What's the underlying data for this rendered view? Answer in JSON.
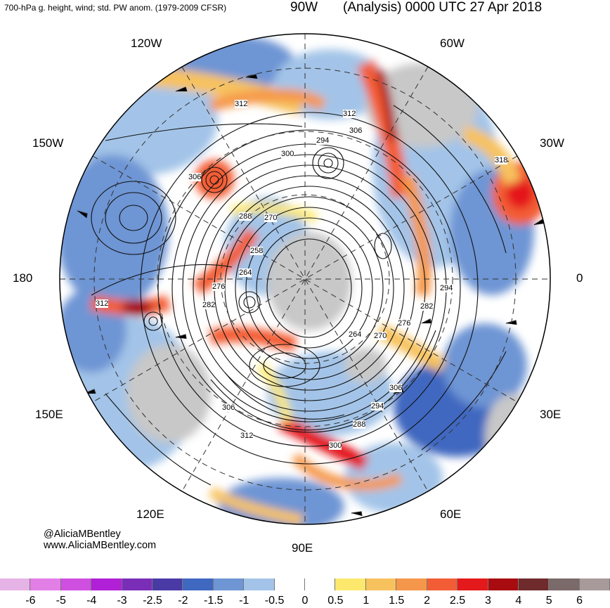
{
  "header": {
    "subtitle": "700-hPa g. height, wind; std. PW anom. (1979-2009 CFSR)",
    "title": "(Analysis) 0000 UTC 27 Apr 2018"
  },
  "longitude_labels": {
    "w90": "90W",
    "w120": "120W",
    "w60": "60W",
    "w150": "150W",
    "w30": "30W",
    "d180": "180",
    "d0": "0",
    "e150": "150E",
    "e30": "30E",
    "e120": "120E",
    "e60": "60E",
    "e90": "90E"
  },
  "contour_labels": {
    "c1": "312",
    "c2": "312",
    "c3": "306",
    "c4": "294",
    "c5": "318",
    "c6": "300",
    "c7": "306",
    "c8": "288",
    "c9": "270",
    "c10": "258",
    "c11": "264",
    "c12": "276",
    "c13": "282",
    "c14": "312",
    "c15": "294",
    "c16": "282",
    "c17": "276",
    "c18": "270",
    "c19": "264",
    "c20": "306",
    "c21": "294",
    "c22": "288",
    "c23": "300",
    "c24": "306",
    "c25": "312"
  },
  "credit": {
    "handle": "@AliciaMBentley",
    "site": "www.AliciaMBentley.com"
  },
  "colorbar": {
    "colors": [
      "#e6b3e6",
      "#e27fe6",
      "#cf4fe0",
      "#b020d6",
      "#7a2eb8",
      "#4a3aa6",
      "#3f68c0",
      "#6e95d4",
      "#a3c4e8",
      "#ffffff",
      "#ffffff",
      "#fde86e",
      "#f7c25e",
      "#f5974a",
      "#f35d36",
      "#e4191b",
      "#a80c10",
      "#6f2b2b",
      "#7b6a6a",
      "#a89a9a"
    ],
    "ticks": [
      "-6",
      "-5",
      "-4",
      "-3",
      "-2.5",
      "-2",
      "-1.5",
      "-1",
      "-0.5",
      "0",
      "0.5",
      "1",
      "1.5",
      "2",
      "2.5",
      "3",
      "4",
      "5",
      "6"
    ]
  }
}
